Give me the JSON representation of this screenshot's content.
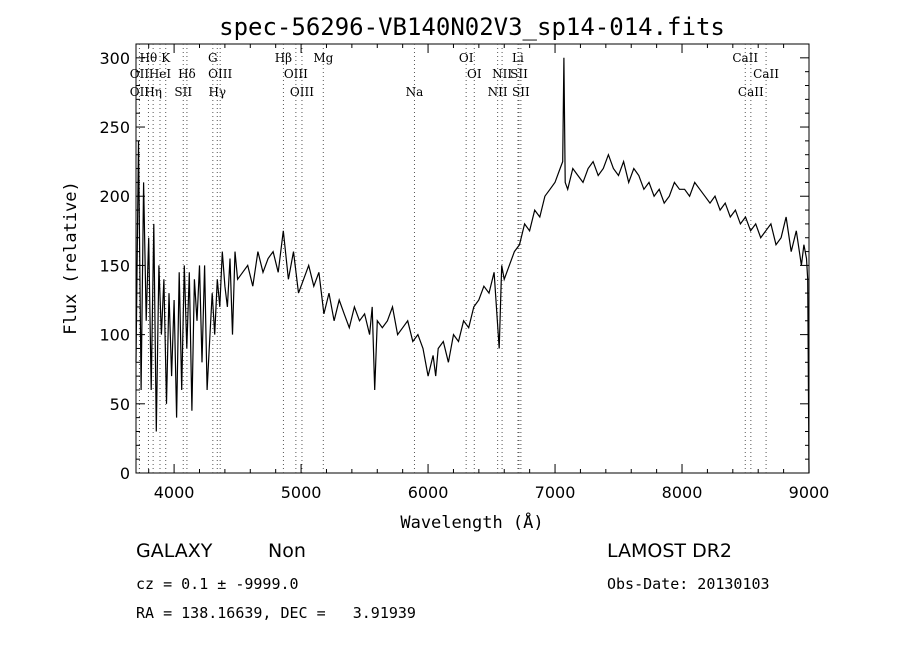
{
  "chart_data": {
    "type": "line",
    "title": "spec-56296-VB140N02V3_sp14-014.fits",
    "xlabel": "Wavelength (Å)",
    "ylabel": "Flux (relative)",
    "xlim": [
      3700,
      9000
    ],
    "ylim": [
      0,
      310
    ],
    "x_ticks": [
      4000,
      5000,
      6000,
      7000,
      8000,
      9000
    ],
    "y_ticks": [
      0,
      50,
      100,
      150,
      200,
      250,
      300
    ],
    "grid": false,
    "series": [
      {
        "x": [
          3700,
          3720,
          3740,
          3760,
          3780,
          3800,
          3820,
          3840,
          3860,
          3880,
          3900,
          3920,
          3940,
          3960,
          3980,
          4000,
          4020,
          4040,
          4060,
          4080,
          4100,
          4120,
          4140,
          4160,
          4180,
          4200,
          4220,
          4240,
          4260,
          4280,
          4300,
          4320,
          4340,
          4360,
          4380,
          4400,
          4420,
          4440,
          4460,
          4480,
          4500,
          4540,
          4580,
          4620,
          4660,
          4700,
          4740,
          4780,
          4820,
          4860,
          4900,
          4940,
          4980,
          5020,
          5060,
          5100,
          5140,
          5180,
          5220,
          5260,
          5300,
          5340,
          5380,
          5420,
          5460,
          5500,
          5540,
          5560,
          5580,
          5600,
          5640,
          5680,
          5720,
          5760,
          5800,
          5840,
          5880,
          5920,
          5960,
          6000,
          6040,
          6060,
          6080,
          6120,
          6160,
          6200,
          6240,
          6280,
          6320,
          6360,
          6400,
          6440,
          6480,
          6520,
          6560,
          6580,
          6600,
          6640,
          6680,
          6720,
          6760,
          6800,
          6840,
          6880,
          6920,
          6960,
          7000,
          7040,
          7060,
          7070,
          7080,
          7100,
          7140,
          7180,
          7220,
          7260,
          7300,
          7340,
          7380,
          7420,
          7460,
          7500,
          7540,
          7580,
          7620,
          7660,
          7700,
          7740,
          7780,
          7820,
          7860,
          7900,
          7940,
          7980,
          8020,
          8060,
          8100,
          8140,
          8180,
          8220,
          8260,
          8300,
          8340,
          8380,
          8420,
          8460,
          8500,
          8540,
          8580,
          8620,
          8660,
          8700,
          8740,
          8780,
          8820,
          8860,
          8900,
          8940,
          8960,
          8980,
          8990,
          9000
        ],
        "y": [
          80,
          240,
          60,
          210,
          110,
          170,
          60,
          180,
          30,
          150,
          100,
          140,
          50,
          130,
          70,
          125,
          40,
          145,
          60,
          150,
          90,
          145,
          45,
          140,
          110,
          150,
          80,
          150,
          60,
          95,
          130,
          100,
          140,
          120,
          160,
          135,
          120,
          155,
          100,
          160,
          140,
          145,
          150,
          135,
          160,
          145,
          155,
          160,
          145,
          175,
          140,
          160,
          130,
          140,
          150,
          135,
          145,
          115,
          130,
          110,
          125,
          115,
          105,
          120,
          110,
          115,
          100,
          120,
          60,
          110,
          105,
          110,
          120,
          100,
          105,
          110,
          95,
          100,
          90,
          70,
          85,
          70,
          90,
          95,
          80,
          100,
          95,
          110,
          105,
          120,
          125,
          135,
          130,
          145,
          90,
          150,
          140,
          150,
          160,
          165,
          180,
          175,
          190,
          185,
          200,
          205,
          210,
          220,
          225,
          300,
          210,
          205,
          220,
          215,
          210,
          220,
          225,
          215,
          220,
          230,
          220,
          215,
          225,
          210,
          220,
          215,
          205,
          210,
          200,
          205,
          195,
          200,
          210,
          205,
          205,
          200,
          210,
          205,
          200,
          195,
          200,
          190,
          195,
          185,
          190,
          180,
          185,
          175,
          180,
          170,
          175,
          180,
          165,
          170,
          185,
          160,
          175,
          150,
          165,
          155,
          140,
          0
        ]
      }
    ],
    "annotations": {
      "line_markers": [
        {
          "label": "Hθ",
          "x": 3798,
          "row": 1
        },
        {
          "label": "K",
          "x": 3934,
          "row": 1
        },
        {
          "label": "G",
          "x": 4305,
          "row": 1
        },
        {
          "label": "Hβ",
          "x": 4861,
          "row": 1
        },
        {
          "label": "Mg",
          "x": 5175,
          "row": 1
        },
        {
          "label": "OI",
          "x": 6300,
          "row": 1
        },
        {
          "label": "Li",
          "x": 6708,
          "row": 1
        },
        {
          "label": "CaII",
          "x": 8498,
          "row": 1
        },
        {
          "label": "OII",
          "x": 3727,
          "row": 2
        },
        {
          "label": "HeI",
          "x": 3889,
          "row": 2
        },
        {
          "label": "Hδ",
          "x": 4101,
          "row": 2
        },
        {
          "label": "OIII",
          "x": 4363,
          "row": 2
        },
        {
          "label": "OIII",
          "x": 4959,
          "row": 2
        },
        {
          "label": "OI",
          "x": 6364,
          "row": 2
        },
        {
          "label": "NII",
          "x": 6583,
          "row": 2
        },
        {
          "label": "SII",
          "x": 6716,
          "row": 2
        },
        {
          "label": "CaII",
          "x": 8662,
          "row": 2
        },
        {
          "label": "OII",
          "x": 3727,
          "row": 3
        },
        {
          "label": "Hη",
          "x": 3835,
          "row": 3
        },
        {
          "label": "SII",
          "x": 4072,
          "row": 3
        },
        {
          "label": "Hγ",
          "x": 4340,
          "row": 3
        },
        {
          "label": "OIII",
          "x": 5007,
          "row": 3
        },
        {
          "label": "Na",
          "x": 5893,
          "row": 3
        },
        {
          "label": "NII",
          "x": 6548,
          "row": 3
        },
        {
          "label": "SII",
          "x": 6731,
          "row": 3
        },
        {
          "label": "CaII",
          "x": 8542,
          "row": 3
        }
      ]
    }
  },
  "info": {
    "class_label": "GALAXY",
    "subclass_label": "Non",
    "survey_label": "LAMOST DR2",
    "cz_text": "cz = 0.1 ± -9999.0",
    "obs_date_text": "Obs-Date: 20130103",
    "coords_text": "RA = 138.16639, DEC =   3.91939"
  }
}
